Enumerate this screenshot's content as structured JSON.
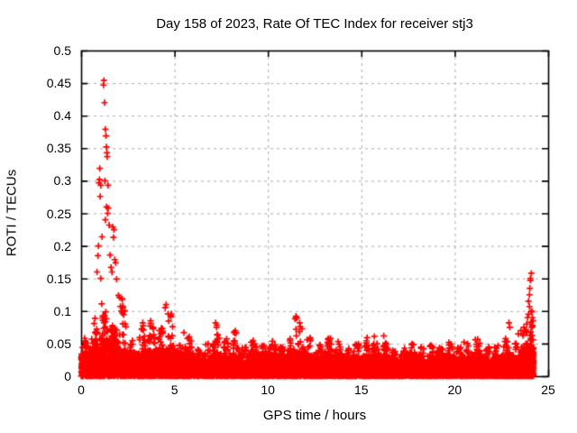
{
  "chart_data": {
    "type": "scatter",
    "title": "Day 158 of 2023, Rate Of TEC Index for receiver stj3",
    "xlabel": "GPS time / hours",
    "ylabel": "ROTI / TECUs",
    "xlim": [
      0,
      25
    ],
    "ylim": [
      0,
      0.5
    ],
    "xticks": [
      0,
      5,
      10,
      15,
      20,
      25
    ],
    "yticks": [
      0,
      0.05,
      0.1,
      0.15,
      0.2,
      0.25,
      0.3,
      0.35,
      0.4,
      0.45,
      0.5
    ],
    "ytick_labels": [
      "0",
      "0.05",
      "0.1",
      "0.15",
      "0.2",
      "0.25",
      "0.3",
      "0.35",
      "0.4",
      "0.45",
      "0.5"
    ],
    "xtick_labels": [
      "0",
      "5",
      "10",
      "15",
      "20",
      "25"
    ],
    "grid": {
      "on": true,
      "style": "dashed",
      "color": "#a9a9a9"
    },
    "marker": {
      "glyph": "+",
      "color": "#ff0000",
      "size": 7
    },
    "frame_color": "#000000",
    "legend": "none",
    "envelope_bins_note": "dense background band: [hour_bin_start, solid_band_top, bump_peak_top], bin width 0.5 h, values in TECU/min",
    "envelope": [
      [
        0.0,
        0.035,
        0.06
      ],
      [
        0.5,
        0.045,
        0.09
      ],
      [
        1.0,
        0.06,
        0.1
      ],
      [
        1.5,
        0.055,
        0.09
      ],
      [
        2.0,
        0.04,
        0.12
      ],
      [
        2.5,
        0.03,
        0.055
      ],
      [
        3.0,
        0.035,
        0.08
      ],
      [
        3.5,
        0.04,
        0.095
      ],
      [
        4.0,
        0.04,
        0.09
      ],
      [
        4.5,
        0.042,
        0.105
      ],
      [
        5.0,
        0.03,
        0.05
      ],
      [
        5.5,
        0.035,
        0.067
      ],
      [
        6.0,
        0.025,
        0.045
      ],
      [
        6.5,
        0.025,
        0.05
      ],
      [
        7.0,
        0.035,
        0.08
      ],
      [
        7.5,
        0.03,
        0.06
      ],
      [
        8.0,
        0.032,
        0.075
      ],
      [
        8.5,
        0.025,
        0.05
      ],
      [
        9.0,
        0.035,
        0.055
      ],
      [
        9.5,
        0.03,
        0.05
      ],
      [
        10.0,
        0.035,
        0.055
      ],
      [
        10.5,
        0.03,
        0.05
      ],
      [
        11.0,
        0.032,
        0.06
      ],
      [
        11.5,
        0.035,
        0.085
      ],
      [
        12.0,
        0.03,
        0.06
      ],
      [
        12.5,
        0.025,
        0.05
      ],
      [
        13.0,
        0.032,
        0.06
      ],
      [
        13.5,
        0.03,
        0.055
      ],
      [
        14.0,
        0.025,
        0.045
      ],
      [
        14.5,
        0.028,
        0.055
      ],
      [
        15.0,
        0.03,
        0.06
      ],
      [
        15.5,
        0.032,
        0.055
      ],
      [
        16.0,
        0.03,
        0.06
      ],
      [
        16.5,
        0.022,
        0.042
      ],
      [
        17.0,
        0.024,
        0.045
      ],
      [
        17.5,
        0.028,
        0.05
      ],
      [
        18.0,
        0.024,
        0.045
      ],
      [
        18.5,
        0.025,
        0.048
      ],
      [
        19.0,
        0.03,
        0.05
      ],
      [
        19.5,
        0.03,
        0.052
      ],
      [
        20.0,
        0.025,
        0.045
      ],
      [
        20.5,
        0.026,
        0.052
      ],
      [
        21.0,
        0.03,
        0.057
      ],
      [
        21.5,
        0.025,
        0.045
      ],
      [
        22.0,
        0.026,
        0.05
      ],
      [
        22.5,
        0.03,
        0.058
      ],
      [
        23.0,
        0.026,
        0.05
      ],
      [
        23.5,
        0.04,
        0.075
      ],
      [
        24.0,
        0.045,
        0.1
      ]
    ],
    "spikes_note": "individually visible high points: [hour, ROTI]",
    "spikes": [
      [
        0.85,
        0.16
      ],
      [
        0.9,
        0.185
      ],
      [
        0.93,
        0.2
      ],
      [
        0.95,
        0.297
      ],
      [
        0.98,
        0.302
      ],
      [
        1.0,
        0.319
      ],
      [
        1.02,
        0.276
      ],
      [
        1.05,
        0.293
      ],
      [
        1.05,
        0.15
      ],
      [
        1.1,
        0.111
      ],
      [
        1.12,
        0.214
      ],
      [
        1.2,
        0.447
      ],
      [
        1.22,
        0.454
      ],
      [
        1.25,
        0.42
      ],
      [
        1.27,
        0.3
      ],
      [
        1.3,
        0.379
      ],
      [
        1.3,
        0.24
      ],
      [
        1.33,
        0.369
      ],
      [
        1.35,
        0.352
      ],
      [
        1.36,
        0.26
      ],
      [
        1.38,
        0.343
      ],
      [
        1.4,
        0.337
      ],
      [
        1.42,
        0.25
      ],
      [
        1.44,
        0.293
      ],
      [
        1.45,
        0.258
      ],
      [
        1.5,
        0.232
      ],
      [
        1.55,
        0.186
      ],
      [
        1.6,
        0.167
      ],
      [
        1.65,
        0.16
      ],
      [
        1.7,
        0.229
      ],
      [
        1.73,
        0.213
      ],
      [
        1.76,
        0.225
      ],
      [
        1.8,
        0.179
      ],
      [
        1.85,
        0.174
      ],
      [
        1.9,
        0.149
      ],
      [
        2.0,
        0.124
      ],
      [
        2.05,
        0.121
      ],
      [
        2.1,
        0.107
      ],
      [
        2.15,
        0.1
      ],
      [
        2.2,
        0.118
      ],
      [
        3.3,
        0.082
      ],
      [
        4.5,
        0.105
      ],
      [
        4.55,
        0.11
      ],
      [
        5.5,
        0.067
      ],
      [
        7.2,
        0.082
      ],
      [
        7.25,
        0.075
      ],
      [
        9.1,
        0.052
      ],
      [
        11.45,
        0.088
      ],
      [
        11.5,
        0.092
      ],
      [
        11.52,
        0.09
      ],
      [
        11.55,
        0.089
      ],
      [
        11.5,
        0.072
      ],
      [
        11.52,
        0.062
      ],
      [
        12.1,
        0.056
      ],
      [
        13.35,
        0.058
      ],
      [
        15.7,
        0.061
      ],
      [
        16.2,
        0.062
      ],
      [
        16.3,
        0.051
      ],
      [
        20.5,
        0.052
      ],
      [
        21.1,
        0.056
      ],
      [
        22.9,
        0.082
      ],
      [
        22.95,
        0.075
      ],
      [
        23.4,
        0.065
      ],
      [
        23.55,
        0.07
      ],
      [
        23.7,
        0.075
      ],
      [
        23.85,
        0.08
      ],
      [
        23.9,
        0.09
      ],
      [
        23.95,
        0.095
      ],
      [
        23.95,
        0.115
      ],
      [
        24.0,
        0.107
      ],
      [
        24.0,
        0.125
      ],
      [
        24.02,
        0.135
      ],
      [
        24.05,
        0.147
      ],
      [
        24.05,
        0.15
      ],
      [
        24.1,
        0.158
      ],
      [
        24.1,
        0.1
      ],
      [
        24.15,
        0.09
      ],
      [
        24.2,
        0.085
      ]
    ]
  }
}
